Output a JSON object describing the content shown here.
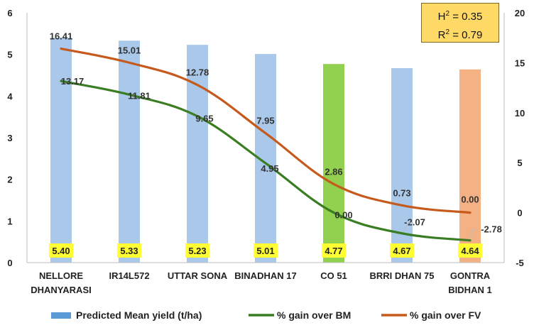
{
  "stats": {
    "h2_prefix": "H",
    "h2_sup": "2",
    "h2_value": " = 0.35",
    "r2_prefix": "R",
    "r2_sup": "2",
    "r2_value": " = 0.79"
  },
  "colors": {
    "bar_default": "#A9C8EA",
    "bar_highlight_green": "#92D050",
    "bar_highlight_salmon": "#F4B183",
    "line_bm": "#3A7D22",
    "line_fv": "#C55A1C",
    "label_box": "#FFFF33"
  },
  "chart_data": {
    "type": "bar",
    "categories": [
      "NELLORE\nDHANYARASI",
      "IR14L572",
      "UTTAR SONA",
      "BINADHAN 17",
      "CO 51",
      "BRRI DHAN 75",
      "GONTRA\nBIDHAN 1"
    ],
    "series": [
      {
        "name": "Predicted Mean yield (t/ha)",
        "type": "bar",
        "axis": "left",
        "values": [
          5.4,
          5.33,
          5.23,
          5.01,
          4.77,
          4.67,
          4.64
        ],
        "labels": [
          "5.40",
          "5.33",
          "5.23",
          "5.01",
          "4.77",
          "4.67",
          "4.64"
        ],
        "bar_colors": [
          "#A9C8EA",
          "#A9C8EA",
          "#A9C8EA",
          "#A9C8EA",
          "#92D050",
          "#A9C8EA",
          "#F4B183"
        ]
      },
      {
        "name": "% gain over BM",
        "type": "line",
        "axis": "right",
        "values": [
          13.17,
          11.81,
          9.65,
          4.95,
          0.0,
          -2.07,
          -2.78
        ],
        "labels": [
          "13.17",
          "11.81",
          "9.65",
          "4.95",
          "0.00",
          "-2.07",
          "-2.78"
        ]
      },
      {
        "name": "% gain over FV",
        "type": "line",
        "axis": "right",
        "values": [
          16.41,
          15.01,
          12.78,
          7.95,
          2.86,
          0.73,
          0.0
        ],
        "labels": [
          "16.41",
          "15.01",
          "12.78",
          "7.95",
          "2.86",
          "0.73",
          "0.00"
        ]
      }
    ],
    "y_left": {
      "lim": [
        0,
        6
      ],
      "ticks": [
        "0",
        "1",
        "2",
        "3",
        "4",
        "5",
        "6"
      ]
    },
    "y_right": {
      "lim": [
        -5,
        20
      ],
      "ticks": [
        "-5",
        "0",
        "5",
        "10",
        "15",
        "20"
      ]
    },
    "grid": false,
    "legend_position": "bottom"
  }
}
